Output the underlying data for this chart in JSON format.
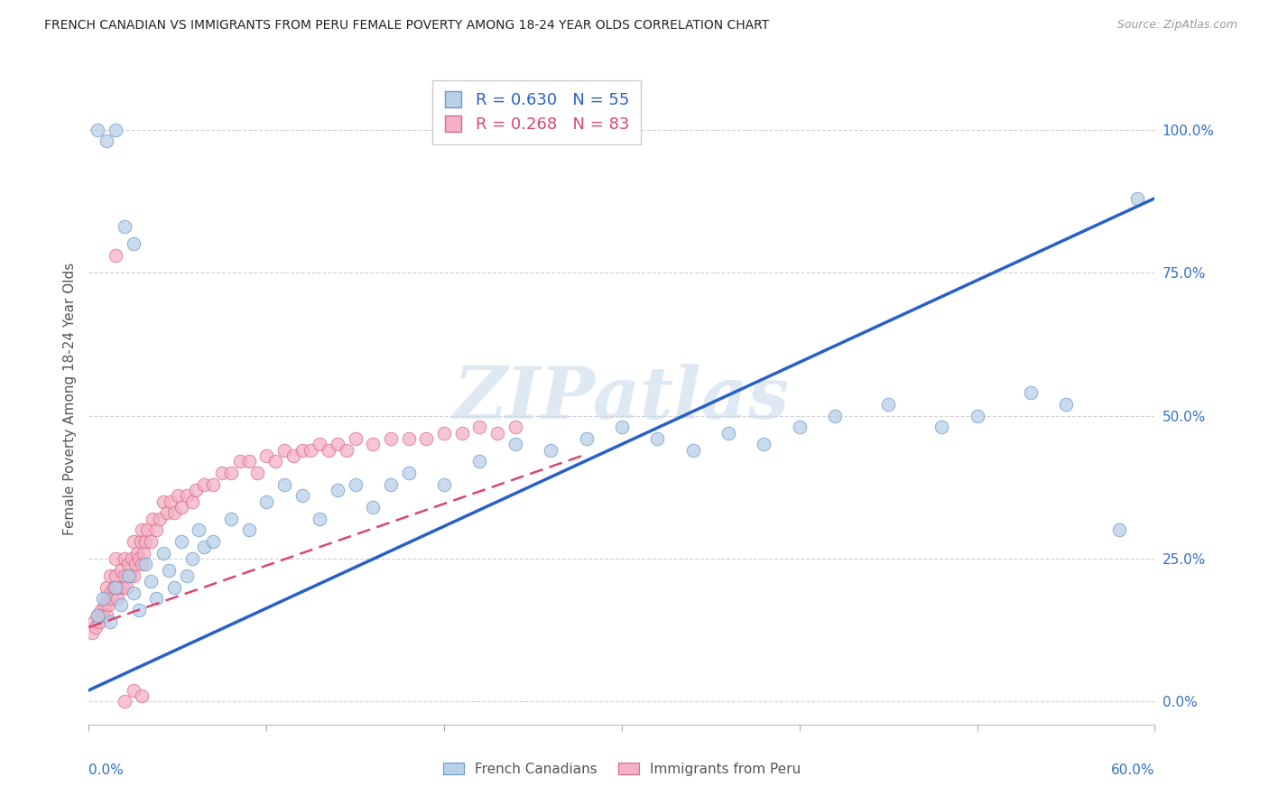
{
  "title": "FRENCH CANADIAN VS IMMIGRANTS FROM PERU FEMALE POVERTY AMONG 18-24 YEAR OLDS CORRELATION CHART",
  "source": "Source: ZipAtlas.com",
  "ylabel": "Female Poverty Among 18-24 Year Olds",
  "xlim": [
    0.0,
    0.6
  ],
  "ylim": [
    -0.04,
    1.1
  ],
  "yticks": [
    0.0,
    0.25,
    0.5,
    0.75,
    1.0
  ],
  "ytick_labels": [
    "0.0%",
    "25.0%",
    "50.0%",
    "75.0%",
    "100.0%"
  ],
  "xtick_positions": [
    0.0,
    0.1,
    0.2,
    0.3,
    0.4,
    0.5,
    0.6
  ],
  "blue_R": 0.63,
  "blue_N": 55,
  "pink_R": 0.268,
  "pink_N": 83,
  "legend_label_blue": "French Canadians",
  "legend_label_pink": "Immigrants from Peru",
  "blue_color": "#b8d0e8",
  "blue_edge": "#6899cc",
  "pink_color": "#f4b0c4",
  "pink_edge": "#d86888",
  "blue_line_color": "#2860c8",
  "pink_line_color": "#d84870",
  "background_color": "#ffffff",
  "grid_color": "#cccccc",
  "watermark": "ZIPatlas",
  "title_color": "#222222",
  "axis_label_color": "#3070c8",
  "blue_line_y0": 0.02,
  "blue_line_y1": 0.88,
  "pink_line_y0": 0.13,
  "pink_line_y1_x": 0.25,
  "pink_line_y1": 0.4,
  "blue_scatter_x": [
    0.005,
    0.008,
    0.012,
    0.015,
    0.018,
    0.022,
    0.025,
    0.028,
    0.032,
    0.035,
    0.038,
    0.042,
    0.045,
    0.048,
    0.052,
    0.055,
    0.058,
    0.062,
    0.065,
    0.07,
    0.08,
    0.09,
    0.1,
    0.11,
    0.12,
    0.13,
    0.14,
    0.15,
    0.16,
    0.17,
    0.18,
    0.2,
    0.22,
    0.24,
    0.26,
    0.28,
    0.3,
    0.32,
    0.34,
    0.36,
    0.38,
    0.4,
    0.42,
    0.45,
    0.48,
    0.5,
    0.53,
    0.55,
    0.58,
    0.005,
    0.01,
    0.015,
    0.02,
    0.025,
    0.59
  ],
  "blue_scatter_y": [
    0.15,
    0.18,
    0.14,
    0.2,
    0.17,
    0.22,
    0.19,
    0.16,
    0.24,
    0.21,
    0.18,
    0.26,
    0.23,
    0.2,
    0.28,
    0.22,
    0.25,
    0.3,
    0.27,
    0.28,
    0.32,
    0.3,
    0.35,
    0.38,
    0.36,
    0.32,
    0.37,
    0.38,
    0.34,
    0.38,
    0.4,
    0.38,
    0.42,
    0.45,
    0.44,
    0.46,
    0.48,
    0.46,
    0.44,
    0.47,
    0.45,
    0.48,
    0.5,
    0.52,
    0.48,
    0.5,
    0.54,
    0.52,
    0.3,
    1.0,
    0.98,
    1.0,
    0.83,
    0.8,
    0.88
  ],
  "pink_scatter_x": [
    0.002,
    0.003,
    0.004,
    0.005,
    0.006,
    0.007,
    0.008,
    0.009,
    0.01,
    0.01,
    0.01,
    0.011,
    0.012,
    0.012,
    0.013,
    0.014,
    0.015,
    0.015,
    0.016,
    0.017,
    0.018,
    0.019,
    0.02,
    0.02,
    0.021,
    0.022,
    0.023,
    0.024,
    0.025,
    0.025,
    0.026,
    0.027,
    0.028,
    0.029,
    0.03,
    0.03,
    0.031,
    0.032,
    0.033,
    0.035,
    0.036,
    0.038,
    0.04,
    0.042,
    0.044,
    0.046,
    0.048,
    0.05,
    0.052,
    0.055,
    0.058,
    0.06,
    0.065,
    0.07,
    0.075,
    0.08,
    0.085,
    0.09,
    0.095,
    0.1,
    0.105,
    0.11,
    0.115,
    0.12,
    0.125,
    0.13,
    0.135,
    0.14,
    0.145,
    0.15,
    0.16,
    0.17,
    0.18,
    0.19,
    0.2,
    0.21,
    0.22,
    0.23,
    0.24,
    0.015,
    0.02,
    0.025,
    0.03
  ],
  "pink_scatter_y": [
    0.12,
    0.14,
    0.13,
    0.15,
    0.14,
    0.16,
    0.15,
    0.17,
    0.18,
    0.15,
    0.2,
    0.17,
    0.19,
    0.22,
    0.18,
    0.2,
    0.22,
    0.25,
    0.18,
    0.2,
    0.23,
    0.2,
    0.22,
    0.25,
    0.2,
    0.24,
    0.22,
    0.25,
    0.22,
    0.28,
    0.24,
    0.26,
    0.25,
    0.28,
    0.24,
    0.3,
    0.26,
    0.28,
    0.3,
    0.28,
    0.32,
    0.3,
    0.32,
    0.35,
    0.33,
    0.35,
    0.33,
    0.36,
    0.34,
    0.36,
    0.35,
    0.37,
    0.38,
    0.38,
    0.4,
    0.4,
    0.42,
    0.42,
    0.4,
    0.43,
    0.42,
    0.44,
    0.43,
    0.44,
    0.44,
    0.45,
    0.44,
    0.45,
    0.44,
    0.46,
    0.45,
    0.46,
    0.46,
    0.46,
    0.47,
    0.47,
    0.48,
    0.47,
    0.48,
    0.78,
    0.0,
    0.02,
    0.01
  ]
}
